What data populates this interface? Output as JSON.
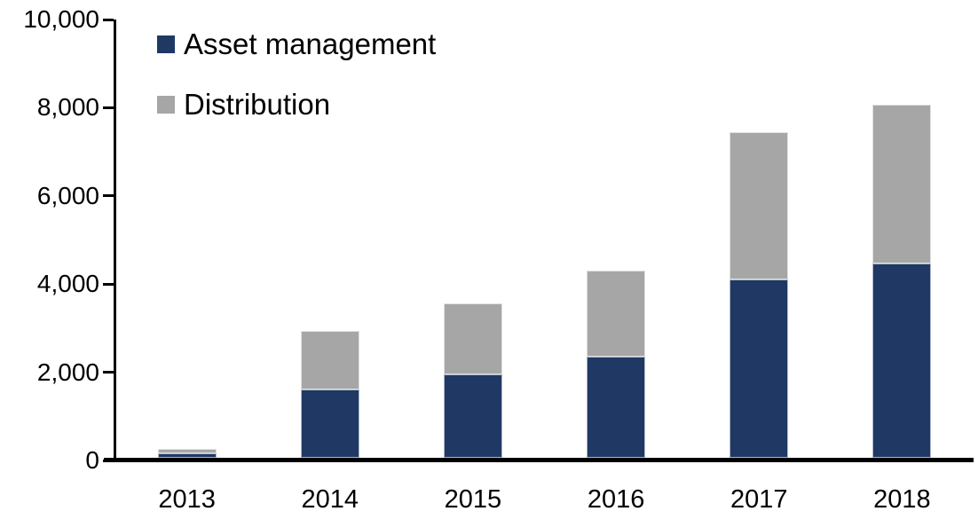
{
  "chart_data": {
    "type": "bar",
    "stacked": true,
    "title": "",
    "xlabel": "",
    "ylabel": "",
    "categories": [
      "2013",
      "2014",
      "2015",
      "2016",
      "2017",
      "2018"
    ],
    "series": [
      {
        "name": "Asset management",
        "color": "#1f3864",
        "values": [
          100,
          1550,
          1900,
          2300,
          4050,
          4400
        ]
      },
      {
        "name": "Distribution",
        "color": "#a6a6a6",
        "values": [
          100,
          1320,
          1600,
          1950,
          3340,
          3600
        ]
      }
    ],
    "stack_totals": [
      200,
      2870,
      3500,
      4250,
      7390,
      8000
    ],
    "ylim": [
      0,
      10000
    ],
    "yticks": [
      {
        "value": 0,
        "label": "0"
      },
      {
        "value": 2000,
        "label": "2,000"
      },
      {
        "value": 4000,
        "label": "4,000"
      },
      {
        "value": 6000,
        "label": "6,000"
      },
      {
        "value": 8000,
        "label": "8,000"
      },
      {
        "value": 10000,
        "label": "10,000"
      }
    ],
    "grid": false,
    "legend_position": "top-left",
    "axis_color": "#000000",
    "text_color": "#000000",
    "background": "#ffffff"
  }
}
